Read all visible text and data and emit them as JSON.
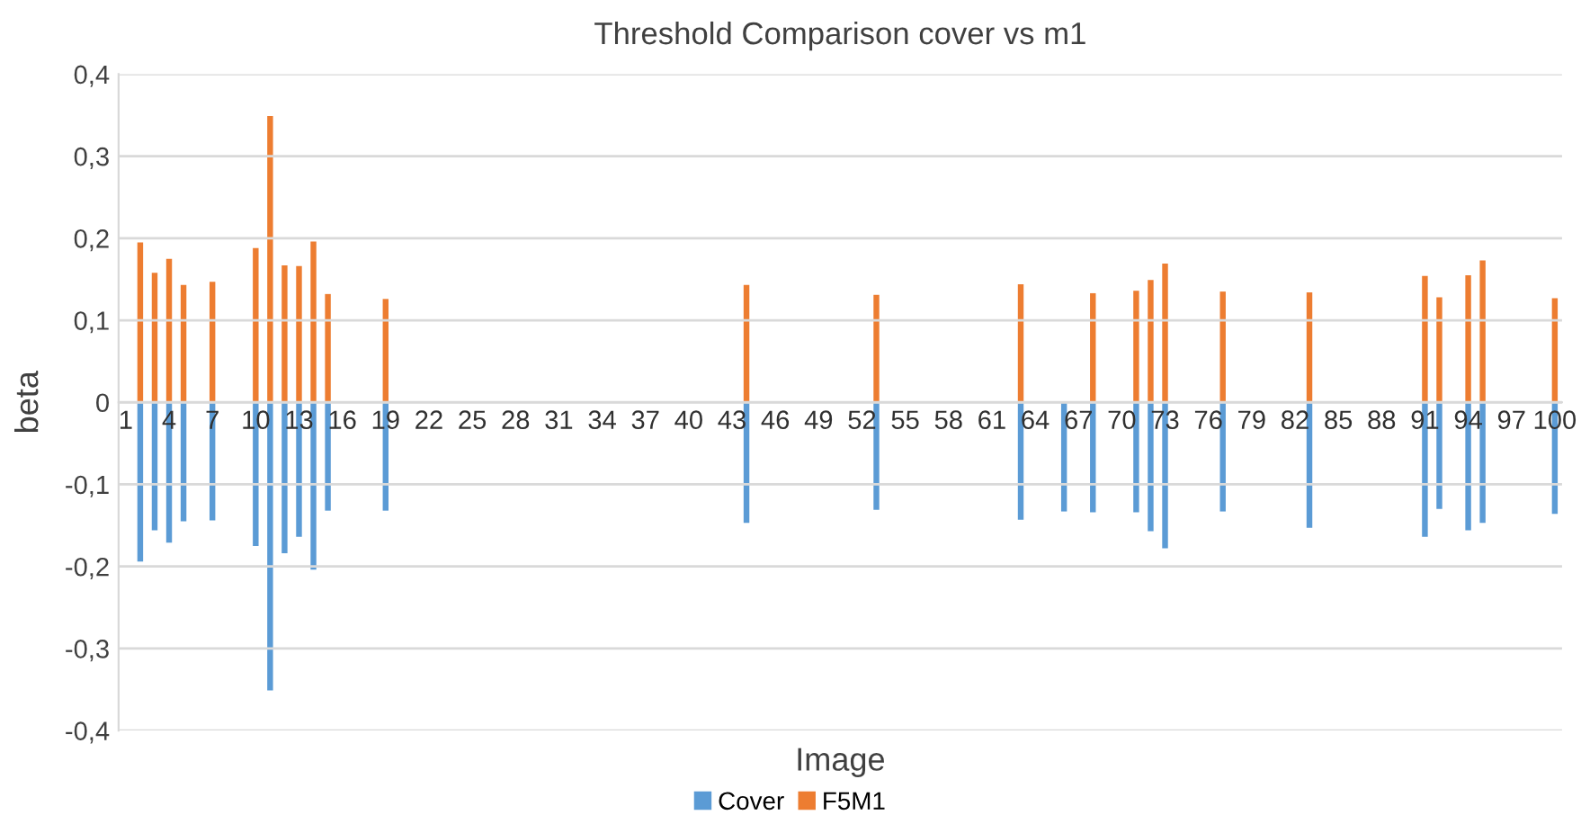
{
  "chart_data": {
    "type": "bar",
    "title": "Threshold Comparison cover vs m1",
    "xlabel": "Image",
    "ylabel": "beta",
    "categories": [
      "1",
      null,
      null,
      "4",
      null,
      null,
      "7",
      null,
      null,
      "10",
      null,
      null,
      "13",
      null,
      null,
      "16",
      null,
      null,
      "19",
      null,
      null,
      "22",
      null,
      null,
      "25",
      null,
      null,
      "28",
      null,
      null,
      "31",
      null,
      null,
      "34",
      null,
      null,
      "37",
      null,
      null,
      "40",
      null,
      null,
      "43",
      null,
      null,
      "46",
      null,
      null,
      "49",
      null,
      null,
      "52",
      null,
      null,
      "55",
      null,
      null,
      "58",
      null,
      null,
      "61",
      null,
      null,
      "64",
      null,
      null,
      "67",
      null,
      null,
      "70",
      null,
      null,
      "73",
      null,
      null,
      "76",
      null,
      null,
      "79",
      null,
      null,
      "82",
      null,
      null,
      "85",
      null,
      null,
      "88",
      null,
      null,
      "91",
      null,
      null,
      "94",
      null,
      null,
      "97",
      null,
      null,
      "100"
    ],
    "stacked": true,
    "series": [
      {
        "name": "Cover",
        "color": "#5b9bd5",
        "values": [
          null,
          -0.194,
          -0.156,
          -0.171,
          -0.145,
          null,
          -0.144,
          null,
          null,
          -0.175,
          -0.351,
          -0.184,
          -0.164,
          -0.204,
          -0.132,
          null,
          null,
          null,
          -0.132,
          null,
          null,
          null,
          null,
          null,
          null,
          null,
          null,
          null,
          null,
          null,
          null,
          null,
          null,
          null,
          null,
          null,
          null,
          null,
          null,
          null,
          null,
          null,
          null,
          -0.147,
          null,
          null,
          null,
          null,
          null,
          null,
          null,
          null,
          -0.131,
          null,
          null,
          null,
          null,
          null,
          null,
          null,
          null,
          null,
          -0.143,
          null,
          null,
          -0.133,
          null,
          -0.134,
          null,
          null,
          -0.134,
          -0.157,
          -0.178,
          null,
          null,
          null,
          -0.133,
          null,
          null,
          null,
          null,
          null,
          -0.153,
          null,
          null,
          null,
          null,
          null,
          null,
          null,
          -0.164,
          -0.13,
          null,
          -0.156,
          -0.147,
          null,
          null,
          null,
          null,
          -0.136
        ]
      },
      {
        "name": "F5M1",
        "color": "#ed7d31",
        "values": [
          null,
          0.195,
          0.158,
          0.175,
          0.143,
          null,
          0.147,
          null,
          null,
          0.188,
          0.349,
          0.167,
          0.166,
          0.196,
          0.132,
          null,
          null,
          null,
          0.126,
          null,
          null,
          null,
          null,
          null,
          null,
          null,
          null,
          null,
          null,
          null,
          null,
          null,
          null,
          null,
          null,
          null,
          null,
          null,
          null,
          null,
          null,
          null,
          null,
          0.143,
          null,
          null,
          null,
          null,
          null,
          null,
          null,
          null,
          0.131,
          null,
          null,
          null,
          null,
          null,
          null,
          null,
          null,
          null,
          0.144,
          null,
          null,
          null,
          null,
          0.133,
          null,
          null,
          0.136,
          0.149,
          0.169,
          null,
          null,
          null,
          0.135,
          null,
          null,
          null,
          null,
          null,
          0.134,
          null,
          null,
          null,
          null,
          null,
          null,
          null,
          0.154,
          0.128,
          null,
          0.155,
          0.173,
          null,
          null,
          null,
          null,
          0.127
        ]
      }
    ],
    "ylim": [
      -0.4,
      0.4
    ],
    "yticks": [
      {
        "value": -0.4,
        "label": "-0,4"
      },
      {
        "value": -0.3,
        "label": "-0,3"
      },
      {
        "value": -0.2,
        "label": "-0,2"
      },
      {
        "value": -0.1,
        "label": "-0,1"
      },
      0,
      {
        "value": 0.1,
        "label": "0,1"
      },
      {
        "value": 0.2,
        "label": "0,2"
      },
      {
        "value": 0.3,
        "label": "0,3"
      },
      {
        "value": 0.4,
        "label": "0,4"
      }
    ],
    "grid": "y",
    "legend": "bottom"
  }
}
